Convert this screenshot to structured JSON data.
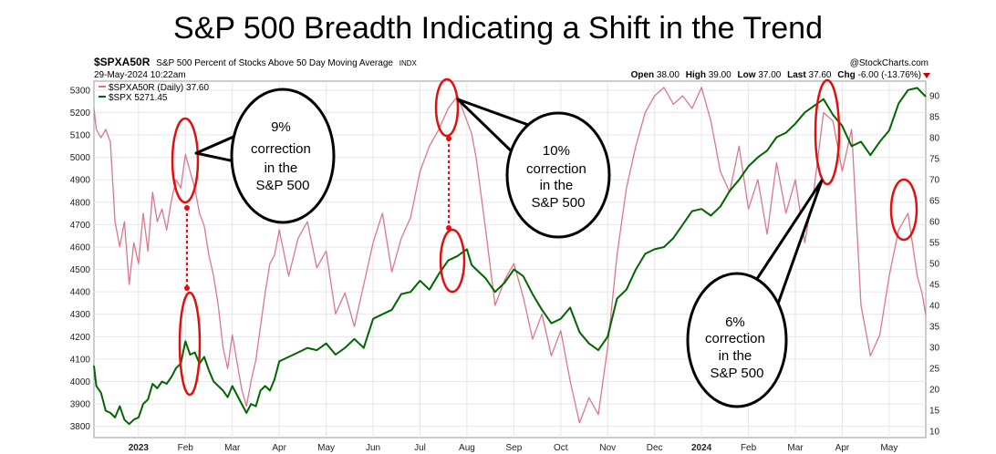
{
  "title": "S&P 500 Breadth Indicating a Shift in the Trend",
  "header": {
    "symbol": "$SPXA50R",
    "description": "S&P 500 Percent of Stocks Above 50 Day Moving Average",
    "exchange": "INDX",
    "date": "29-May-2024 10:22am",
    "source": "@StockCharts.com",
    "quote": {
      "open_label": "Open",
      "open": "38.00",
      "high_label": "High",
      "high": "39.00",
      "low_label": "Low",
      "low": "37.00",
      "last_label": "Last",
      "last": "37.60",
      "chg_label": "Chg",
      "chg": "-6.00 (-13.76%)"
    }
  },
  "legend": [
    {
      "label": "$SPXA50R (Daily) 37.60",
      "color": "#d9788a"
    },
    {
      "label": "$SPX 5271.45",
      "color": "#006600"
    }
  ],
  "chart_data": {
    "type": "line",
    "title": "S&P 500 Breadth Indicating a Shift in the Trend",
    "x_tick_labels": [
      "2023",
      "Feb",
      "Mar",
      "Apr",
      "May",
      "Jun",
      "Jul",
      "Aug",
      "Sep",
      "Oct",
      "Nov",
      "Dec",
      "2024",
      "Feb",
      "Mar",
      "Apr",
      "May"
    ],
    "x_tick_month_index": [
      0,
      1,
      2,
      3,
      4,
      5,
      6,
      7,
      8,
      9,
      10,
      11,
      12,
      13,
      14,
      15,
      16
    ],
    "x_range_months": [
      -0.95,
      16.78
    ],
    "left_axis": {
      "series": "$SPX",
      "ylim": [
        3750,
        5340
      ],
      "ticks": [
        3800,
        3900,
        4000,
        4100,
        4200,
        4300,
        4400,
        4500,
        4600,
        4700,
        4800,
        4900,
        5000,
        5100,
        5200,
        5300
      ]
    },
    "right_axis": {
      "series": "$SPXA50R",
      "ylim": [
        8.5,
        93.5
      ],
      "ticks": [
        10,
        15,
        20,
        25,
        30,
        35,
        40,
        45,
        50,
        55,
        60,
        65,
        70,
        75,
        80,
        85,
        90
      ]
    },
    "series": [
      {
        "name": "$SPX",
        "axis": "left",
        "color": "#006600",
        "points": [
          [
            -0.95,
            4070
          ],
          [
            -0.9,
            3980
          ],
          [
            -0.8,
            3950
          ],
          [
            -0.7,
            3870
          ],
          [
            -0.6,
            3860
          ],
          [
            -0.5,
            3840
          ],
          [
            -0.4,
            3890
          ],
          [
            -0.3,
            3830
          ],
          [
            -0.2,
            3810
          ],
          [
            -0.1,
            3830
          ],
          [
            0,
            3840
          ],
          [
            0.1,
            3900
          ],
          [
            0.2,
            3920
          ],
          [
            0.3,
            3990
          ],
          [
            0.4,
            3970
          ],
          [
            0.5,
            4000
          ],
          [
            0.6,
            3990
          ],
          [
            0.7,
            4020
          ],
          [
            0.8,
            4060
          ],
          [
            0.9,
            4080
          ],
          [
            1.0,
            4180
          ],
          [
            1.1,
            4120
          ],
          [
            1.2,
            4130
          ],
          [
            1.3,
            4080
          ],
          [
            1.4,
            4110
          ],
          [
            1.5,
            4050
          ],
          [
            1.6,
            4000
          ],
          [
            1.7,
            3980
          ],
          [
            1.8,
            3960
          ],
          [
            1.9,
            3930
          ],
          [
            2.0,
            3980
          ],
          [
            2.2,
            3900
          ],
          [
            2.3,
            3860
          ],
          [
            2.4,
            3900
          ],
          [
            2.5,
            3890
          ],
          [
            2.6,
            3960
          ],
          [
            2.7,
            3980
          ],
          [
            2.8,
            3960
          ],
          [
            2.9,
            4010
          ],
          [
            3.0,
            4090
          ],
          [
            3.2,
            4110
          ],
          [
            3.4,
            4130
          ],
          [
            3.6,
            4150
          ],
          [
            3.8,
            4140
          ],
          [
            4.0,
            4170
          ],
          [
            4.2,
            4120
          ],
          [
            4.4,
            4150
          ],
          [
            4.6,
            4190
          ],
          [
            4.8,
            4150
          ],
          [
            5.0,
            4280
          ],
          [
            5.2,
            4300
          ],
          [
            5.4,
            4320
          ],
          [
            5.6,
            4390
          ],
          [
            5.8,
            4400
          ],
          [
            6.0,
            4450
          ],
          [
            6.2,
            4410
          ],
          [
            6.4,
            4480
          ],
          [
            6.6,
            4540
          ],
          [
            6.8,
            4560
          ],
          [
            7.0,
            4590
          ],
          [
            7.1,
            4520
          ],
          [
            7.2,
            4500
          ],
          [
            7.4,
            4460
          ],
          [
            7.6,
            4400
          ],
          [
            7.8,
            4440
          ],
          [
            8.0,
            4500
          ],
          [
            8.2,
            4470
          ],
          [
            8.4,
            4390
          ],
          [
            8.6,
            4320
          ],
          [
            8.8,
            4260
          ],
          [
            9.0,
            4280
          ],
          [
            9.2,
            4330
          ],
          [
            9.4,
            4220
          ],
          [
            9.6,
            4170
          ],
          [
            9.8,
            4140
          ],
          [
            10.0,
            4200
          ],
          [
            10.2,
            4370
          ],
          [
            10.4,
            4410
          ],
          [
            10.6,
            4500
          ],
          [
            10.8,
            4570
          ],
          [
            11.0,
            4590
          ],
          [
            11.2,
            4600
          ],
          [
            11.4,
            4640
          ],
          [
            11.6,
            4700
          ],
          [
            11.8,
            4760
          ],
          [
            12.0,
            4770
          ],
          [
            12.2,
            4740
          ],
          [
            12.4,
            4780
          ],
          [
            12.6,
            4850
          ],
          [
            12.8,
            4900
          ],
          [
            13.0,
            4960
          ],
          [
            13.2,
            5000
          ],
          [
            13.4,
            5030
          ],
          [
            13.6,
            5090
          ],
          [
            13.8,
            5110
          ],
          [
            14.0,
            5150
          ],
          [
            14.2,
            5200
          ],
          [
            14.4,
            5230
          ],
          [
            14.6,
            5260
          ],
          [
            14.8,
            5190
          ],
          [
            15.0,
            5140
          ],
          [
            15.2,
            5050
          ],
          [
            15.4,
            5070
          ],
          [
            15.6,
            5010
          ],
          [
            15.8,
            5070
          ],
          [
            16.0,
            5120
          ],
          [
            16.2,
            5240
          ],
          [
            16.4,
            5300
          ],
          [
            16.6,
            5310
          ],
          [
            16.78,
            5271
          ]
        ]
      },
      {
        "name": "$SPXA50R",
        "axis": "right",
        "color": "#d9788a",
        "points": [
          [
            -0.95,
            87
          ],
          [
            -0.9,
            82
          ],
          [
            -0.8,
            80
          ],
          [
            -0.7,
            82
          ],
          [
            -0.6,
            79
          ],
          [
            -0.5,
            60
          ],
          [
            -0.4,
            54
          ],
          [
            -0.3,
            60
          ],
          [
            -0.2,
            45
          ],
          [
            -0.1,
            55
          ],
          [
            0,
            50
          ],
          [
            0.1,
            62
          ],
          [
            0.2,
            53
          ],
          [
            0.3,
            67
          ],
          [
            0.4,
            60
          ],
          [
            0.5,
            63
          ],
          [
            0.6,
            58
          ],
          [
            0.7,
            65
          ],
          [
            0.8,
            70
          ],
          [
            0.9,
            68
          ],
          [
            1.0,
            76
          ],
          [
            1.1,
            72
          ],
          [
            1.2,
            68
          ],
          [
            1.3,
            62
          ],
          [
            1.4,
            59
          ],
          [
            1.5,
            52
          ],
          [
            1.6,
            47
          ],
          [
            1.7,
            40
          ],
          [
            1.8,
            30
          ],
          [
            1.9,
            25
          ],
          [
            2.0,
            33
          ],
          [
            2.2,
            20
          ],
          [
            2.3,
            16
          ],
          [
            2.4,
            22
          ],
          [
            2.5,
            27
          ],
          [
            2.6,
            35
          ],
          [
            2.7,
            43
          ],
          [
            2.8,
            50
          ],
          [
            2.9,
            52
          ],
          [
            3.0,
            58
          ],
          [
            3.2,
            47
          ],
          [
            3.4,
            56
          ],
          [
            3.6,
            60
          ],
          [
            3.8,
            49
          ],
          [
            4.0,
            53
          ],
          [
            4.2,
            38
          ],
          [
            4.4,
            43
          ],
          [
            4.6,
            35
          ],
          [
            4.8,
            45
          ],
          [
            5.0,
            55
          ],
          [
            5.2,
            62
          ],
          [
            5.4,
            48
          ],
          [
            5.6,
            56
          ],
          [
            5.8,
            61
          ],
          [
            6.0,
            72
          ],
          [
            6.2,
            78
          ],
          [
            6.4,
            82
          ],
          [
            6.6,
            87
          ],
          [
            6.8,
            90
          ],
          [
            7.0,
            84
          ],
          [
            7.1,
            81
          ],
          [
            7.2,
            75
          ],
          [
            7.4,
            58
          ],
          [
            7.6,
            40
          ],
          [
            7.8,
            46
          ],
          [
            8.0,
            50
          ],
          [
            8.2,
            42
          ],
          [
            8.4,
            32
          ],
          [
            8.6,
            38
          ],
          [
            8.8,
            28
          ],
          [
            9.0,
            34
          ],
          [
            9.2,
            22
          ],
          [
            9.4,
            12
          ],
          [
            9.6,
            18
          ],
          [
            9.8,
            14
          ],
          [
            10.0,
            30
          ],
          [
            10.2,
            52
          ],
          [
            10.4,
            68
          ],
          [
            10.6,
            78
          ],
          [
            10.8,
            86
          ],
          [
            11.0,
            90
          ],
          [
            11.2,
            92
          ],
          [
            11.4,
            88
          ],
          [
            11.6,
            90
          ],
          [
            11.8,
            87
          ],
          [
            12.0,
            92
          ],
          [
            12.2,
            84
          ],
          [
            12.4,
            72
          ],
          [
            12.6,
            67
          ],
          [
            12.8,
            78
          ],
          [
            13.0,
            63
          ],
          [
            13.2,
            70
          ],
          [
            13.4,
            57
          ],
          [
            13.6,
            74
          ],
          [
            13.8,
            62
          ],
          [
            14.0,
            70
          ],
          [
            14.2,
            55
          ],
          [
            14.4,
            68
          ],
          [
            14.6,
            86
          ],
          [
            14.8,
            84
          ],
          [
            15.0,
            72
          ],
          [
            15.2,
            82
          ],
          [
            15.4,
            40
          ],
          [
            15.6,
            28
          ],
          [
            15.8,
            33
          ],
          [
            16.0,
            47
          ],
          [
            16.2,
            58
          ],
          [
            16.4,
            62
          ],
          [
            16.6,
            47
          ],
          [
            16.7,
            43
          ],
          [
            16.78,
            37.6
          ]
        ]
      }
    ],
    "annotations": [
      {
        "text": "9%\ncorrection\nin the\nS&P 500"
      },
      {
        "text": "10%\ncorrection\nin the\nS&P 500"
      },
      {
        "text": "6%\ncorrection\nin the\nS&P 500"
      }
    ]
  }
}
